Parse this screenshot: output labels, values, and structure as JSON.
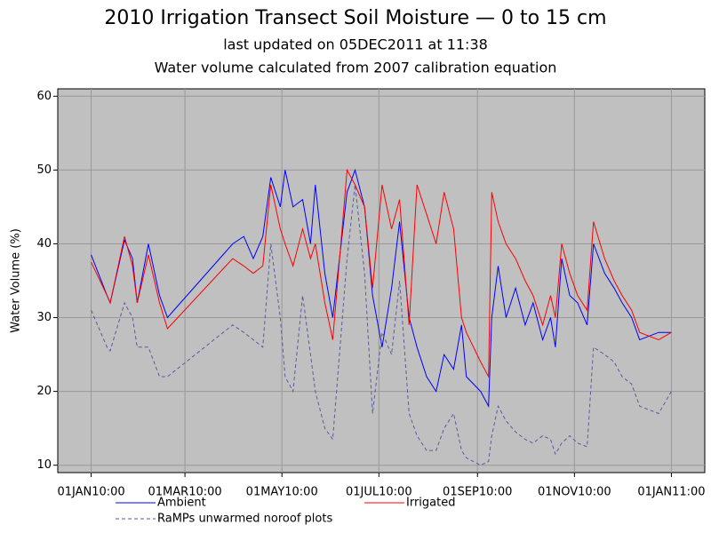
{
  "chart_data": {
    "type": "line",
    "title": "2010 Irrigation Transect Soil Moisture — 0 to 15 cm",
    "subtitle": "last updated on 05DEC2011 at 11:38",
    "subtitle2": "Water volume calculated from 2007 calibration equation",
    "ylabel": "Water Volume (%)",
    "x": [
      "2010-01-01",
      "2010-01-11",
      "2010-01-13",
      "2010-01-22",
      "2010-01-27",
      "2010-01-30",
      "2010-02-06",
      "2010-02-13",
      "2010-02-18",
      "2010-03-31",
      "2010-04-07",
      "2010-04-13",
      "2010-04-19",
      "2010-04-24",
      "2010-04-30",
      "2010-05-03",
      "2010-05-08",
      "2010-05-14",
      "2010-05-19",
      "2010-05-22",
      "2010-05-28",
      "2010-06-02",
      "2010-06-11",
      "2010-06-16",
      "2010-06-22",
      "2010-06-27",
      "2010-07-03",
      "2010-07-09",
      "2010-07-14",
      "2010-07-20",
      "2010-07-25",
      "2010-07-31",
      "2010-08-06",
      "2010-08-11",
      "2010-08-17",
      "2010-08-22",
      "2010-08-25",
      "2010-09-03",
      "2010-09-08",
      "2010-09-10",
      "2010-09-14",
      "2010-09-19",
      "2010-09-25",
      "2010-10-01",
      "2010-10-06",
      "2010-10-12",
      "2010-10-17",
      "2010-10-20",
      "2010-10-24",
      "2010-10-29",
      "2010-11-03",
      "2010-11-09",
      "2010-11-13",
      "2010-11-20",
      "2010-11-26",
      "2010-12-01",
      "2010-12-07",
      "2010-12-12",
      "2010-12-24",
      "2011-01-01"
    ],
    "series": [
      {
        "name": "Ambient",
        "color": "#0000ff",
        "dash": false,
        "values": [
          38.5,
          33,
          32,
          40.5,
          38,
          32,
          40,
          33,
          30,
          40,
          41,
          38,
          41,
          49,
          45,
          50,
          45,
          46,
          40,
          48,
          36,
          30,
          47,
          50,
          45,
          33,
          26,
          34,
          43,
          30,
          26,
          22,
          20,
          25,
          23,
          29,
          22,
          20,
          18,
          30,
          37,
          30,
          34,
          29,
          32,
          27,
          30,
          26,
          38,
          33,
          32,
          29,
          40,
          36,
          34,
          32,
          30,
          27,
          28,
          28
        ]
      },
      {
        "name": "Irrigated",
        "color": "#ff0000",
        "dash": false,
        "values": [
          37.5,
          33,
          32,
          41,
          37,
          32,
          38.5,
          32,
          28.5,
          38,
          37,
          36,
          37,
          48,
          42,
          40,
          37,
          42,
          38,
          40,
          32,
          27,
          50,
          48,
          45,
          34,
          48,
          42,
          46,
          29,
          48,
          44,
          40,
          47,
          42,
          30,
          28,
          24,
          22,
          47,
          43,
          40,
          38,
          35,
          33,
          29,
          33,
          30,
          40,
          36,
          33,
          31,
          43,
          38,
          35,
          33,
          31,
          28,
          27,
          28
        ]
      },
      {
        "name": "RaMPs unwarmed noroof plots",
        "color": "#5a5aa0",
        "dash": true,
        "values": [
          31,
          26,
          25.5,
          32,
          30,
          26,
          26,
          22,
          22,
          29,
          28,
          27,
          26,
          40,
          30,
          22,
          20,
          33,
          25,
          20,
          15,
          13.5,
          38,
          48,
          36,
          17,
          28,
          25,
          35,
          17,
          14,
          12,
          12,
          15,
          17,
          12,
          11,
          10,
          10.5,
          14,
          18,
          16,
          14.5,
          13.5,
          13,
          14,
          13.5,
          11.5,
          13,
          14,
          13,
          12.5,
          26,
          25,
          24,
          22,
          21,
          18,
          17,
          20
        ]
      }
    ],
    "xlim": [
      "2009-12-11",
      "2011-01-22"
    ],
    "xticks": [
      {
        "value": "2010-01-01",
        "label": "01JAN10:00"
      },
      {
        "value": "2010-03-01",
        "label": "01MAR10:00"
      },
      {
        "value": "2010-05-01",
        "label": "01MAY10:00"
      },
      {
        "value": "2010-07-01",
        "label": "01JUL10:00"
      },
      {
        "value": "2010-09-01",
        "label": "01SEP10:00"
      },
      {
        "value": "2010-11-01",
        "label": "01NOV10:00"
      },
      {
        "value": "2011-01-01",
        "label": "01JAN11:00"
      }
    ],
    "ylim": [
      9,
      61
    ],
    "yticks": [
      10,
      20,
      30,
      40,
      50,
      60
    ],
    "grid": true,
    "legend": "bottom"
  }
}
